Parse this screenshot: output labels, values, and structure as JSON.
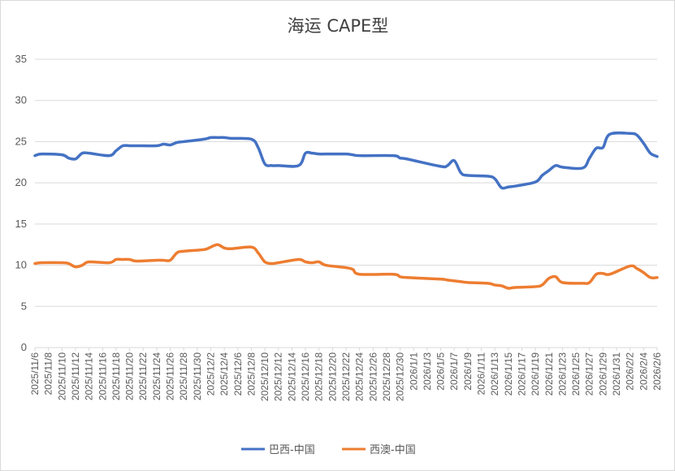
{
  "chart_data": {
    "type": "line",
    "title": "海运 CAPE型",
    "xlabel": "",
    "ylabel": "",
    "ylim": [
      0,
      35
    ],
    "yticks": [
      "0",
      "5",
      "10",
      "15",
      "20",
      "25",
      "30",
      "35"
    ],
    "grid": true,
    "legend_position": "bottom",
    "x_tick_labels": [
      "2025/11/6",
      "2025/11/8",
      "2025/11/10",
      "2025/11/12",
      "2025/11/14",
      "2025/11/16",
      "2025/11/18",
      "2025/11/20",
      "2025/11/22",
      "2025/11/24",
      "2025/11/26",
      "2025/11/28",
      "2025/11/30",
      "2025/12/2",
      "2025/12/4",
      "2025/12/6",
      "2025/12/8",
      "2025/12/10",
      "2025/12/12",
      "2025/12/14",
      "2025/12/16",
      "2025/12/18",
      "2025/12/20",
      "2025/12/22",
      "2025/12/24",
      "2025/12/26",
      "2025/12/28",
      "2025/12/30",
      "2026/1/1",
      "2026/1/3",
      "2026/1/5",
      "2026/1/7",
      "2026/1/9",
      "2026/1/11",
      "2026/1/13",
      "2026/1/15",
      "2026/1/17",
      "2026/1/19",
      "2026/1/21",
      "2026/1/23",
      "2026/1/25",
      "2026/1/27",
      "2026/1/29",
      "2026/1/31",
      "2026/2/2",
      "2026/2/4",
      "2026/2/6"
    ],
    "x": [
      "2025/11/6",
      "2025/11/7",
      "2025/11/10",
      "2025/11/11",
      "2025/11/12",
      "2025/11/13",
      "2025/11/14",
      "2025/11/17",
      "2025/11/18",
      "2025/11/19",
      "2025/11/20",
      "2025/11/21",
      "2025/11/24",
      "2025/11/25",
      "2025/11/26",
      "2025/11/27",
      "2025/11/28",
      "2025/12/1",
      "2025/12/2",
      "2025/12/3",
      "2025/12/4",
      "2025/12/5",
      "2025/12/8",
      "2025/12/9",
      "2025/12/10",
      "2025/12/11",
      "2025/12/12",
      "2025/12/15",
      "2025/12/16",
      "2025/12/17",
      "2025/12/18",
      "2025/12/19",
      "2025/12/22",
      "2025/12/23",
      "2025/12/24",
      "2025/12/29",
      "2025/12/30",
      "2025/12/31",
      "2026/1/5",
      "2026/1/6",
      "2026/1/7",
      "2026/1/8",
      "2026/1/9",
      "2026/1/12",
      "2026/1/13",
      "2026/1/14",
      "2026/1/15",
      "2026/1/16",
      "2026/1/19",
      "2026/1/20",
      "2026/1/21",
      "2026/1/22",
      "2026/1/23",
      "2026/1/26",
      "2026/1/27",
      "2026/1/28",
      "2026/1/29",
      "2026/1/30",
      "2026/2/2",
      "2026/2/3",
      "2026/2/4",
      "2026/2/5",
      "2026/2/6"
    ],
    "series": [
      {
        "name": "巴西-中国",
        "color": "#4472C4",
        "values": [
          23.3,
          23.5,
          23.4,
          23.0,
          22.9,
          23.6,
          23.6,
          23.3,
          23.9,
          24.5,
          24.5,
          24.5,
          24.5,
          24.7,
          24.6,
          24.9,
          25.0,
          25.3,
          25.5,
          25.5,
          25.5,
          25.4,
          25.3,
          24.3,
          22.3,
          22.1,
          22.1,
          22.1,
          23.6,
          23.6,
          23.5,
          23.5,
          23.5,
          23.4,
          23.3,
          23.3,
          23.0,
          22.9,
          22.0,
          22.1,
          22.7,
          21.2,
          20.9,
          20.8,
          20.5,
          19.4,
          19.5,
          19.6,
          20.1,
          20.9,
          21.5,
          22.1,
          21.9,
          21.8,
          23.0,
          24.2,
          24.3,
          25.9,
          26.0,
          25.8,
          24.8,
          23.6,
          23.2
        ]
      },
      {
        "name": "西澳-中国",
        "color": "#ED7D31",
        "values": [
          10.2,
          10.3,
          10.3,
          10.2,
          9.8,
          10.0,
          10.4,
          10.3,
          10.7,
          10.7,
          10.7,
          10.5,
          10.6,
          10.6,
          10.6,
          11.5,
          11.7,
          11.9,
          12.2,
          12.5,
          12.1,
          12.0,
          12.2,
          11.5,
          10.4,
          10.2,
          10.3,
          10.7,
          10.4,
          10.3,
          10.4,
          10.0,
          9.7,
          9.5,
          8.9,
          8.9,
          8.6,
          8.5,
          8.3,
          8.2,
          8.1,
          8.0,
          7.9,
          7.8,
          7.6,
          7.5,
          7.2,
          7.3,
          7.4,
          7.6,
          8.4,
          8.6,
          7.9,
          7.8,
          7.9,
          8.9,
          9.0,
          8.9,
          9.9,
          9.6,
          9.1,
          8.5,
          8.5
        ]
      }
    ]
  }
}
